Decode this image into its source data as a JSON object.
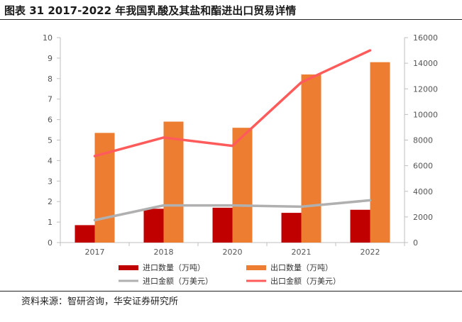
{
  "header": {
    "title": "图表 31 2017-2022 年我国乳酸及其盐和酯进出口贸易详情"
  },
  "source": "资料来源：智研咨询，华安证券研究所",
  "chart_data": {
    "type": "bar",
    "categories": [
      "2017",
      "2018",
      "2020",
      "2021",
      "2022"
    ],
    "series": [
      {
        "name": "进口数量（万吨）",
        "kind": "bar",
        "axis": "left",
        "color": "#c00000",
        "values": [
          0.85,
          1.65,
          1.7,
          1.45,
          1.6
        ]
      },
      {
        "name": "出口数量（万吨）",
        "kind": "bar",
        "axis": "left",
        "color": "#ed7d31",
        "values": [
          5.35,
          5.9,
          5.6,
          8.2,
          8.8
        ]
      },
      {
        "name": "进口金额（万美元）",
        "kind": "line",
        "axis": "right",
        "color": "#b0b0b0",
        "values": [
          1750,
          2900,
          2900,
          2800,
          3300
        ]
      },
      {
        "name": "出口金额（万美元）",
        "kind": "line",
        "axis": "right",
        "color": "#ff5b5b",
        "values": [
          6750,
          8200,
          7550,
          12500,
          15000
        ]
      }
    ],
    "y_left": {
      "min": 0,
      "max": 10,
      "ticks": [
        "0",
        "1",
        "2",
        "3",
        "4",
        "5",
        "6",
        "7",
        "8",
        "9",
        "10"
      ]
    },
    "y_right": {
      "min": 0,
      "max": 16000,
      "ticks": [
        "0",
        "2000",
        "4000",
        "6000",
        "8000",
        "10000",
        "12000",
        "14000",
        "16000"
      ]
    },
    "grid": false,
    "legend_position": "bottom"
  }
}
